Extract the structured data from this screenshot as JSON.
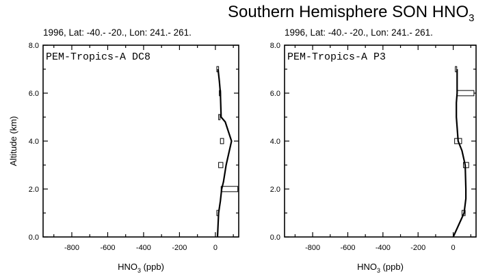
{
  "figure": {
    "title_main": "Southern Hemisphere SON HNO",
    "title_sub": "3"
  },
  "chart_data": [
    {
      "type": "line",
      "subtitle": "1996, Lat: -40.- -20., Lon: 241.- 261.",
      "inner_label": "PEM-Tropics-A DC8",
      "xlabel_main": "HNO",
      "xlabel_sub": "3",
      "xlabel_unit": " (ppb)",
      "ylabel": "Altitude (km)",
      "xlim": [
        -960,
        130
      ],
      "ylim": [
        0,
        8
      ],
      "xticks": [
        -800,
        -600,
        -400,
        -200,
        0
      ],
      "yticks": [
        0,
        2,
        4,
        6,
        8
      ],
      "ytick_labels": [
        "0.0",
        "2.0",
        "4.0",
        "6.0",
        "8.0"
      ],
      "grid": false,
      "profile": {
        "x": [
          12,
          18,
          28,
          35,
          45,
          60,
          90,
          55,
          32,
          28,
          22,
          15
        ],
        "y": [
          0,
          1,
          1.5,
          2,
          2.3,
          3,
          4,
          4.8,
          5,
          6,
          6.5,
          7
        ]
      },
      "boxes": [
        {
          "y": 1,
          "x_min": 8,
          "x_max": 18
        },
        {
          "y": 2,
          "x_min": 32,
          "x_max": 125
        },
        {
          "y": 3,
          "x_min": 18,
          "x_max": 42
        },
        {
          "y": 4,
          "x_min": 28,
          "x_max": 46
        },
        {
          "y": 5,
          "x_min": 18,
          "x_max": 26
        },
        {
          "y": 6,
          "x_min": 22,
          "x_max": 30
        },
        {
          "y": 7,
          "x_min": 8,
          "x_max": 18
        }
      ]
    },
    {
      "type": "line",
      "subtitle": "1996, Lat: -40.- -20., Lon: 241.- 261.",
      "inner_label": "PEM-Tropics-A P3",
      "xlabel_main": "HNO",
      "xlabel_sub": "3",
      "xlabel_unit": " (ppb)",
      "ylabel": "",
      "xlim": [
        -960,
        130
      ],
      "ylim": [
        0,
        8
      ],
      "xticks": [
        -800,
        -600,
        -400,
        -200,
        0
      ],
      "yticks": [
        0,
        2,
        4,
        6,
        8
      ],
      "ytick_labels": [
        "0.0",
        "2.0",
        "4.0",
        "6.0",
        "8.0"
      ],
      "grid": false,
      "profile": {
        "x": [
          0,
          62,
          72,
          72,
          68,
          50,
          28,
          18,
          18,
          22,
          22
        ],
        "y": [
          0,
          1,
          1.6,
          2,
          3,
          3.6,
          4,
          5,
          5.6,
          6,
          7
        ]
      },
      "boxes": [
        {
          "y": 1,
          "x_min": 50,
          "x_max": 68
        },
        {
          "y": 3,
          "x_min": 58,
          "x_max": 88
        },
        {
          "y": 4,
          "x_min": 8,
          "x_max": 48
        },
        {
          "y": 6,
          "x_min": 22,
          "x_max": 118
        },
        {
          "y": 7,
          "x_min": 12,
          "x_max": 20
        }
      ]
    }
  ]
}
